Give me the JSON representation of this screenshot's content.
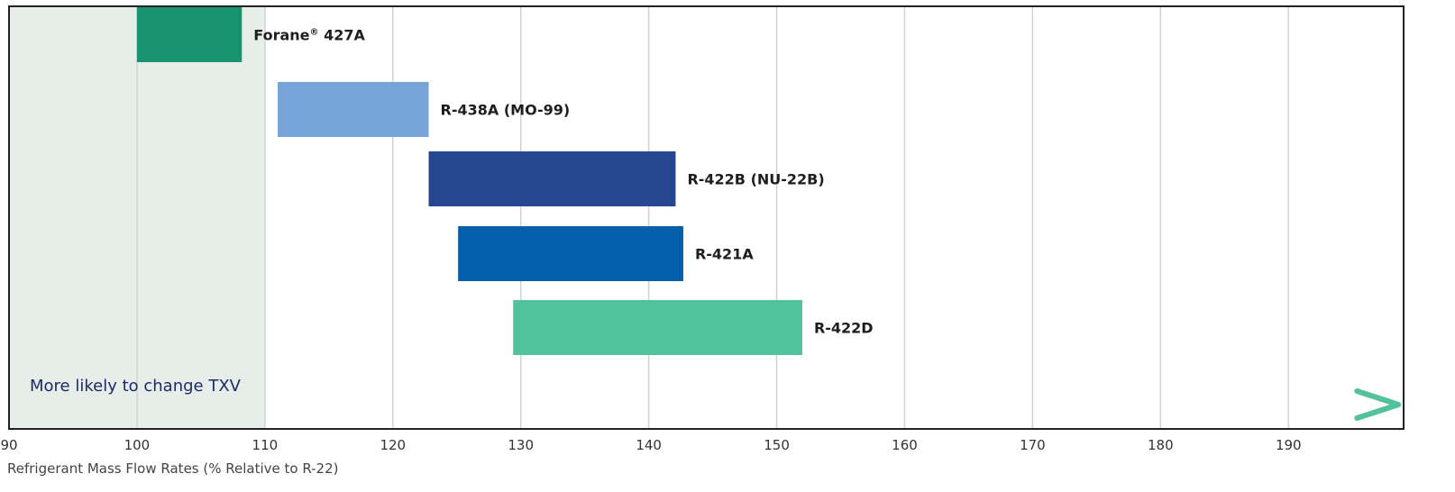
{
  "chart_data": {
    "type": "bar",
    "orientation": "horizontal-range",
    "title": "",
    "xlabel": "Refrigerant Mass Flow Rates (% Relative to R-22)",
    "ylabel": "",
    "xlim": [
      90,
      199
    ],
    "x_ticks": [
      "90",
      "100",
      "110",
      "120",
      "130",
      "140",
      "150",
      "160",
      "170",
      "180",
      "190"
    ],
    "grid": "vertical",
    "shaded_band": {
      "from": 90,
      "to": 110,
      "color": "#e7eee9"
    },
    "bars": [
      {
        "label_main": "Forane",
        "label_mark": "®",
        "label_rest": " 427A",
        "start": 100,
        "end": 108.2,
        "color": "#1a9370"
      },
      {
        "label": "R-438A (MO-99)",
        "start": 111,
        "end": 122.8,
        "color": "#76a4d8"
      },
      {
        "label": "R-422B (NU-22B)",
        "start": 122.8,
        "end": 142.1,
        "color": "#264790"
      },
      {
        "label": "R-421A",
        "start": 125.1,
        "end": 142.7,
        "color": "#0560ab"
      },
      {
        "label": "R-422D",
        "start": 129.4,
        "end": 152,
        "color": "#52c29c"
      }
    ],
    "annotation": {
      "text": "More likely to change TXV",
      "from": 91.7,
      "to": 198.6,
      "color_start": "#1c2a6b",
      "color_end": "#52c29c"
    }
  }
}
